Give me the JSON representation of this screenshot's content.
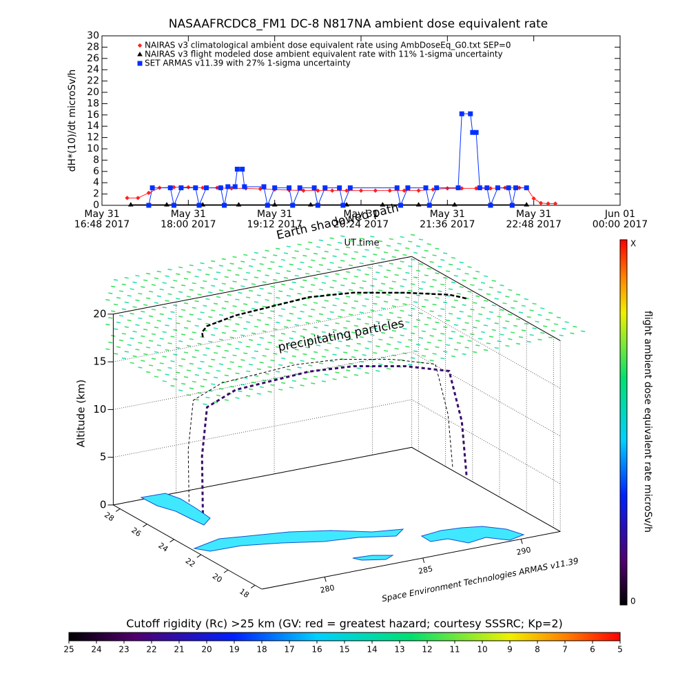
{
  "chart_data": [
    {
      "type": "line",
      "title": "NASAAFRCDC8_FM1 DC-8    N817NA ambient dose equivalent rate",
      "ylabel": "dH*(10)/dt microSv/h",
      "xlabel": "UT time",
      "annotation": "Earth shadowed path",
      "xlim": [
        16.8,
        24.0
      ],
      "xticks": [
        {
          "value": 16.8,
          "label": "May 31\n16:48 2017"
        },
        {
          "value": 18.0,
          "label": "May 31\n18:00 2017"
        },
        {
          "value": 19.2,
          "label": "May 31\n19:12 2017"
        },
        {
          "value": 20.4,
          "label": "May 31\n20:24 2017"
        },
        {
          "value": 21.6,
          "label": "May 31\n21:36 2017"
        },
        {
          "value": 22.8,
          "label": "May 31\n22:48 2017"
        },
        {
          "value": 24.0,
          "label": "Jun 01\n00:00 2017"
        }
      ],
      "ylim": [
        0,
        30
      ],
      "yticks": [
        0,
        2,
        4,
        6,
        8,
        10,
        12,
        14,
        16,
        18,
        20,
        22,
        24,
        26,
        28,
        30
      ],
      "series": [
        {
          "name": "NAIRAS v3 climatological ambient dose equivalent rate using AmbDoseEq_G0.txt SEP=0",
          "color": "#ff2020",
          "marker": "diamond",
          "x": [
            17.15,
            17.3,
            17.45,
            17.6,
            17.8,
            18.0,
            18.2,
            18.4,
            18.6,
            18.8,
            19.0,
            19.2,
            19.4,
            19.6,
            19.8,
            20.0,
            20.2,
            20.4,
            20.6,
            20.8,
            21.0,
            21.2,
            21.4,
            21.6,
            21.8,
            22.0,
            22.2,
            22.4,
            22.6,
            22.7,
            22.8,
            22.9,
            23.0,
            23.1
          ],
          "values": [
            1.3,
            1.3,
            2.2,
            3.1,
            3.2,
            3.2,
            3.1,
            3.1,
            3.0,
            3.0,
            2.9,
            2.8,
            2.7,
            2.6,
            2.6,
            2.6,
            2.6,
            2.6,
            2.6,
            2.6,
            2.6,
            2.6,
            2.8,
            3.0,
            3.0,
            3.0,
            3.0,
            3.1,
            3.1,
            3.1,
            1.2,
            0.4,
            0.3,
            0.3
          ]
        },
        {
          "name": "NAIRAS v3 flight modeled dose ambient equivalent rate with 11% 1-sigma uncertainty",
          "color": "#000000",
          "marker": "triangle",
          "x": [
            17.2,
            17.7,
            18.2,
            18.7,
            19.2,
            19.7,
            20.2,
            20.7,
            21.2,
            21.7,
            22.2,
            22.7
          ],
          "values": [
            0.1,
            0.1,
            0.1,
            0.1,
            0.1,
            0.1,
            0.1,
            0.1,
            0.1,
            0.1,
            0.1,
            0.1
          ]
        },
        {
          "name": "SET ARMAS v11.39 with 27% 1-sigma uncertainty",
          "color": "#0030ff",
          "marker": "square",
          "x": [
            17.45,
            17.5,
            17.75,
            17.8,
            17.9,
            18.1,
            18.15,
            18.25,
            18.45,
            18.5,
            18.55,
            18.65,
            18.68,
            18.75,
            18.78,
            19.05,
            19.1,
            19.2,
            19.4,
            19.45,
            19.55,
            19.75,
            19.8,
            19.9,
            20.1,
            20.15,
            20.25,
            20.9,
            20.95,
            21.05,
            21.3,
            21.35,
            21.45,
            21.75,
            21.8,
            21.92,
            21.95,
            22.0,
            22.05,
            22.15,
            22.2,
            22.3,
            22.45,
            22.5,
            22.55,
            22.7
          ],
          "values": [
            0,
            3.1,
            3.1,
            0,
            3.1,
            3.1,
            0,
            3.1,
            3.1,
            0,
            3.3,
            3.3,
            6.4,
            6.4,
            3.3,
            3.3,
            0,
            3.1,
            3.1,
            0,
            3.1,
            3.1,
            0,
            3.1,
            3.1,
            0,
            3.1,
            3.1,
            0,
            3.1,
            3.1,
            0,
            3.1,
            3.1,
            16.2,
            16.2,
            12.9,
            12.9,
            3.1,
            3.1,
            0,
            3.1,
            3.1,
            0,
            3.1,
            3.1
          ]
        }
      ]
    },
    {
      "type": "scatter3d",
      "zlabel": "Altitude (km)",
      "annotations": [
        "precipitating particles",
        "Space Environment Technologies ARMAS v11.39"
      ],
      "xlim": [
        276.8,
        292
      ],
      "ylim": [
        17.5,
        28.5
      ],
      "zlim": [
        0,
        20
      ],
      "xticks": [
        280,
        285,
        290
      ],
      "yticks": [
        18,
        20,
        22,
        24,
        26,
        28
      ],
      "zticks": [
        0,
        5,
        10,
        15,
        20
      ],
      "series": [
        {
          "color": "#3a0a6a",
          "x": [
            279.3,
            279.6,
            280.2,
            282,
            284,
            286,
            288,
            290,
            291.5,
            291.8,
            291.9
          ],
          "y": [
            25.5,
            26.0,
            26.5,
            27.0,
            27.2,
            27.4,
            27.0,
            26.0,
            25.0,
            24.5,
            24.3
          ],
          "z": [
            0.5,
            6,
            10.5,
            11.2,
            11.2,
            11.2,
            11.3,
            11.3,
            11,
            6,
            0.5
          ]
        }
      ]
    },
    {
      "type": "colorbar",
      "label": "flight ambient dose equivalent rate microSv/h",
      "max_label": "X",
      "min_label": 0
    },
    {
      "type": "colorbar",
      "title": "Cutoff rigidity (Rc) >25 km (GV: red = greatest hazard; courtesy SSSRC; Kp=2)",
      "lim": [
        25,
        5
      ],
      "ticks": [
        25,
        24,
        23,
        22,
        21,
        20,
        19,
        18,
        17,
        16,
        15,
        14,
        13,
        12,
        11,
        10,
        9,
        8,
        7,
        6,
        5
      ]
    }
  ]
}
